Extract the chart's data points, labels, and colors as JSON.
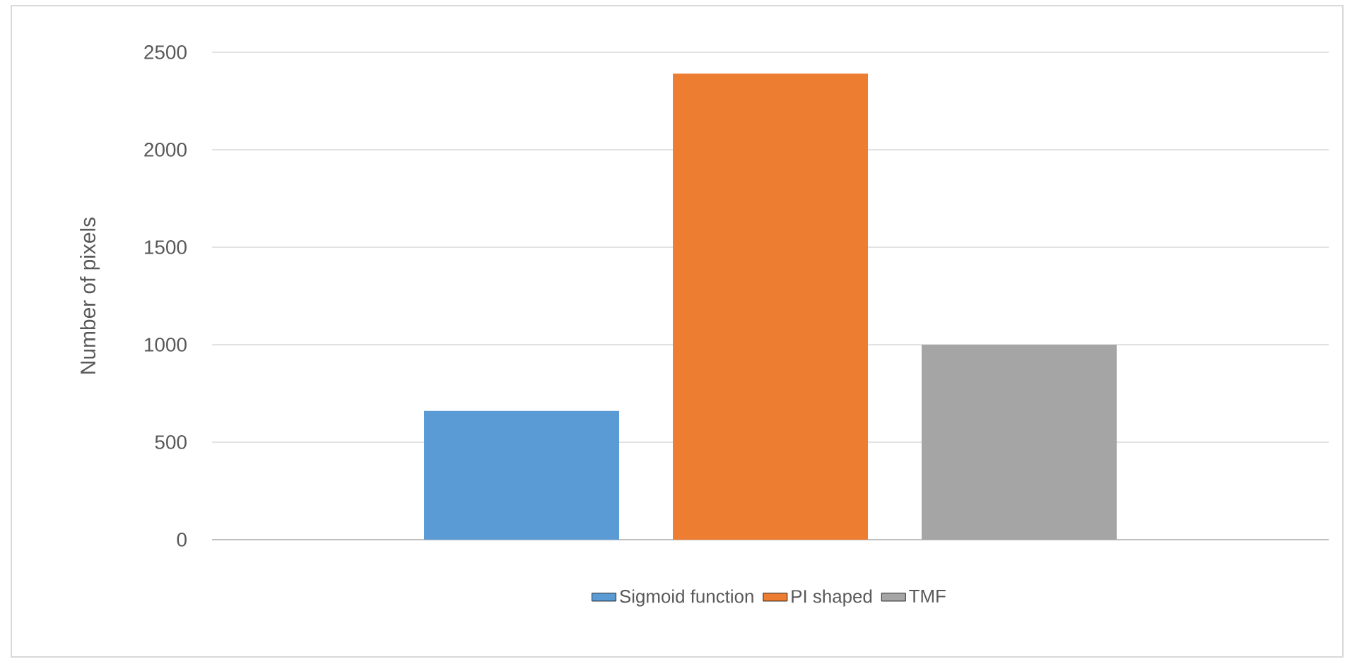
{
  "chart_data": {
    "type": "bar",
    "ylabel": "Number of pixels",
    "categories": [
      null
    ],
    "series": [
      {
        "name": "Sigmoid function",
        "color": "#5b9bd5",
        "values": [
          660
        ]
      },
      {
        "name": "PI shaped",
        "color": "#ed7d31",
        "values": [
          2390
        ]
      },
      {
        "name": "TMF",
        "color": "#a5a5a5",
        "values": [
          1000
        ]
      }
    ],
    "ylim": [
      0,
      2500
    ],
    "yticks": [
      0,
      500,
      1000,
      1500,
      2000,
      2500
    ],
    "grid": "y",
    "legend": "bottom"
  }
}
